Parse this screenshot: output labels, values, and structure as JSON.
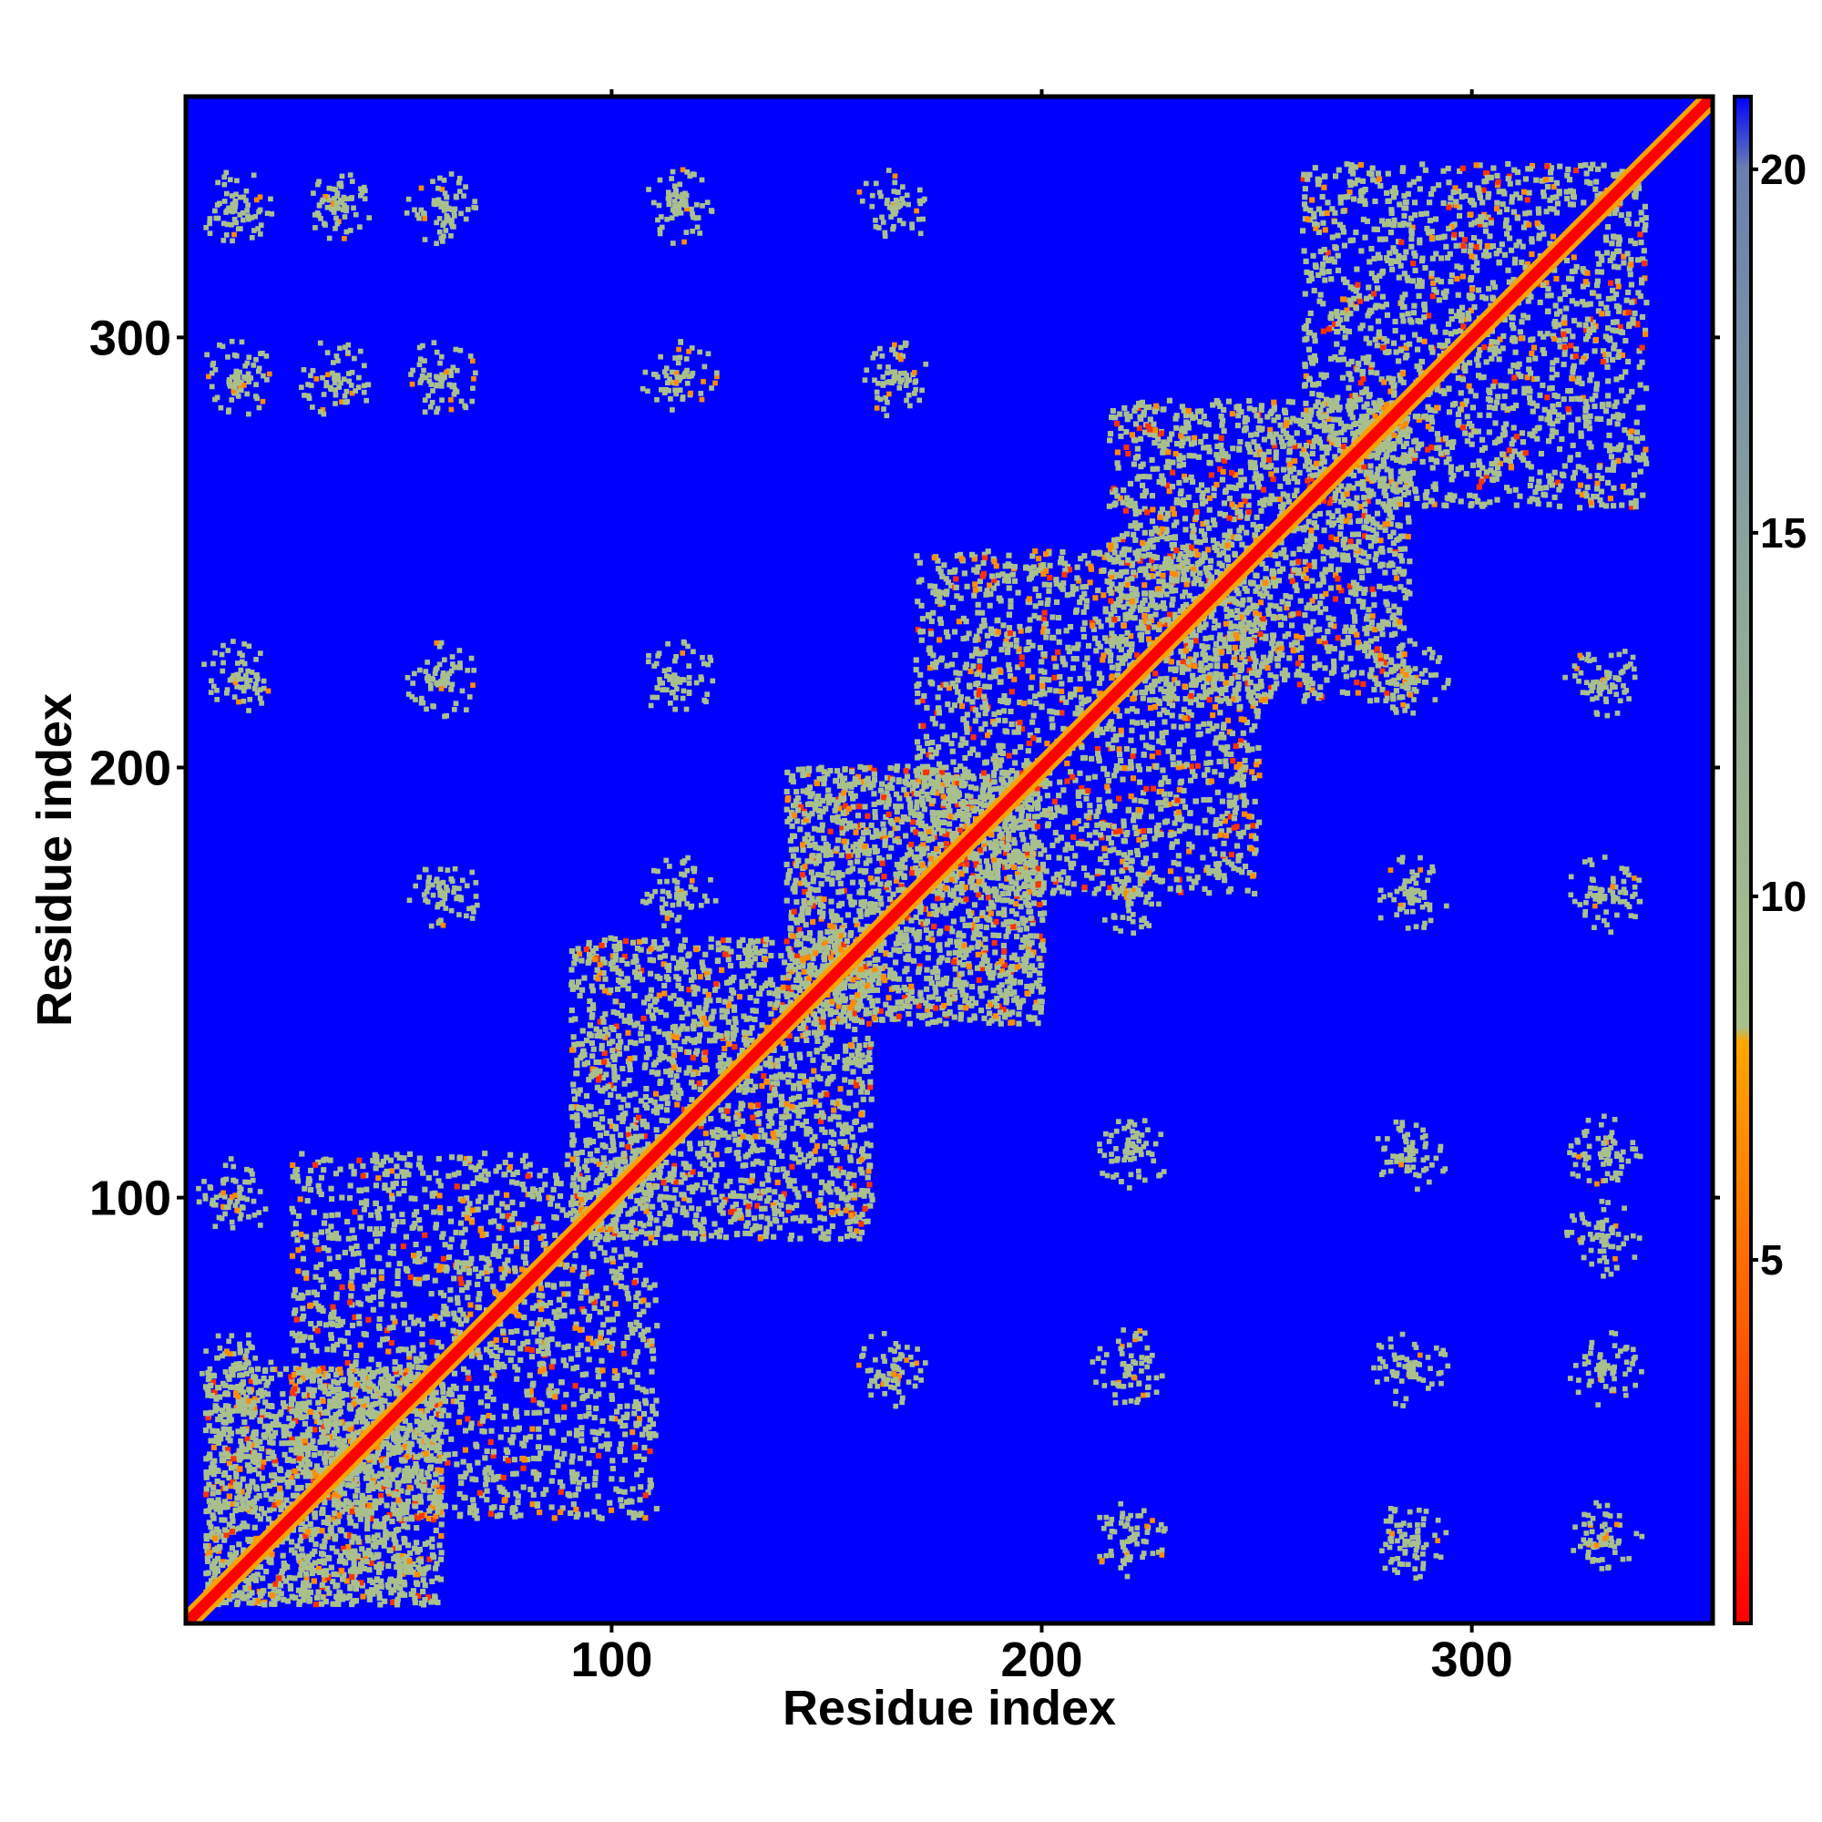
{
  "chart_data": {
    "type": "heatmap",
    "xlabel": "Residue index",
    "ylabel": "Residue index",
    "xlim": [
      1,
      356
    ],
    "ylim": [
      1,
      356
    ],
    "x_ticks": [
      100,
      200,
      300
    ],
    "y_ticks": [
      100,
      200,
      300
    ],
    "colorbar": {
      "ticks": [
        5,
        10,
        15,
        20
      ],
      "range": [
        0,
        21
      ],
      "stops": [
        {
          "value": 0,
          "color": "#ff0000"
        },
        {
          "value": 4,
          "color": "#ff5a00"
        },
        {
          "value": 8,
          "color": "#ffa500"
        },
        {
          "value": 8.2,
          "color": "#a8c08a"
        },
        {
          "value": 14,
          "color": "#8fa89a"
        },
        {
          "value": 20,
          "color": "#6a7fb0"
        },
        {
          "value": 21,
          "color": "#0000ff"
        }
      ]
    },
    "background_color": "#0000ff",
    "diagonal_color": "#ff0000",
    "band_color": "#a9c08c",
    "description_free": true,
    "contact_bands": [
      {
        "x0": 5,
        "x1": 60,
        "y0": 5,
        "y1": 60
      },
      {
        "x0": 25,
        "x1": 110,
        "y0": 25,
        "y1": 110
      },
      {
        "x0": 90,
        "x1": 160,
        "y0": 90,
        "y1": 160
      },
      {
        "x0": 140,
        "x1": 200,
        "y0": 140,
        "y1": 200
      },
      {
        "x0": 170,
        "x1": 250,
        "y0": 170,
        "y1": 250
      },
      {
        "x0": 215,
        "x1": 285,
        "y0": 215,
        "y1": 285
      },
      {
        "x0": 260,
        "x1": 340,
        "y0": 260,
        "y1": 340
      }
    ],
    "offdiagonal_patches": [
      {
        "x": 12,
        "y": 330
      },
      {
        "x": 35,
        "y": 330
      },
      {
        "x": 60,
        "y": 330
      },
      {
        "x": 12,
        "y": 290
      },
      {
        "x": 35,
        "y": 290
      },
      {
        "x": 60,
        "y": 290
      },
      {
        "x": 115,
        "y": 330
      },
      {
        "x": 115,
        "y": 290
      },
      {
        "x": 165,
        "y": 330
      },
      {
        "x": 165,
        "y": 290
      },
      {
        "x": 60,
        "y": 170
      },
      {
        "x": 60,
        "y": 220
      },
      {
        "x": 115,
        "y": 220
      },
      {
        "x": 115,
        "y": 170
      },
      {
        "x": 12,
        "y": 220
      },
      {
        "x": 12,
        "y": 100
      },
      {
        "x": 12,
        "y": 60
      },
      {
        "x": 165,
        "y": 60
      },
      {
        "x": 220,
        "y": 110
      },
      {
        "x": 285,
        "y": 110
      },
      {
        "x": 330,
        "y": 110
      },
      {
        "x": 285,
        "y": 60
      },
      {
        "x": 285,
        "y": 20
      },
      {
        "x": 330,
        "y": 60
      },
      {
        "x": 330,
        "y": 20
      },
      {
        "x": 220,
        "y": 170
      },
      {
        "x": 285,
        "y": 170
      },
      {
        "x": 330,
        "y": 170
      },
      {
        "x": 220,
        "y": 20
      },
      {
        "x": 220,
        "y": 60
      },
      {
        "x": 285,
        "y": 220
      },
      {
        "x": 330,
        "y": 220
      },
      {
        "x": 330,
        "y": 90
      }
    ]
  }
}
